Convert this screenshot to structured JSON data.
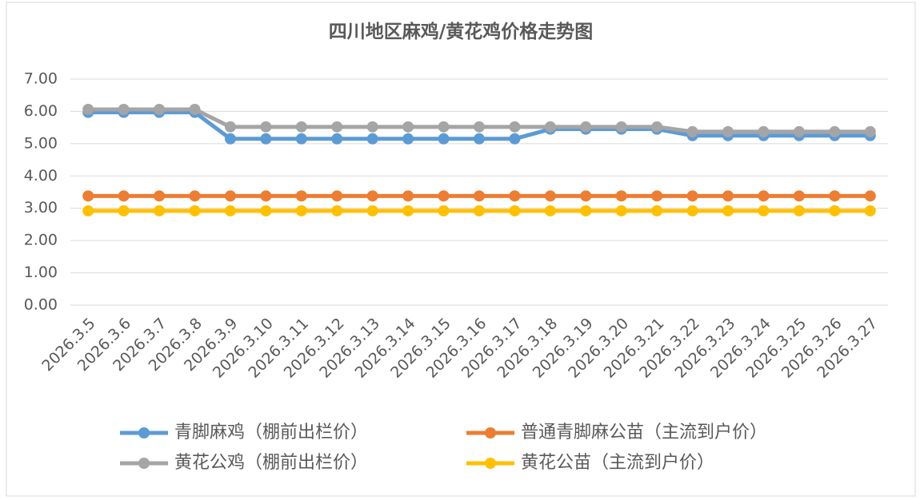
{
  "chart_data": {
    "type": "line",
    "title": "四川地区麻鸡/黄花鸡价格走势图",
    "categories": [
      "2026.3.5",
      "2026.3.6",
      "2026.3.7",
      "2026.3.8",
      "2026.3.9",
      "2026.3.10",
      "2026.3.11",
      "2026.3.12",
      "2026.3.13",
      "2026.3.14",
      "2026.3.15",
      "2026.3.16",
      "2026.3.17",
      "2026.3.18",
      "2026.3.19",
      "2026.3.20",
      "2026.3.21",
      "2026.3.22",
      "2026.3.23",
      "2026.3.24",
      "2026.3.25",
      "2026.3.26",
      "2026.3.27"
    ],
    "series": [
      {
        "name": "青脚麻鸡（棚前出栏价）",
        "color": "#5b9bd5",
        "values": [
          5.97,
          5.97,
          5.97,
          5.97,
          5.15,
          5.15,
          5.15,
          5.15,
          5.15,
          5.15,
          5.15,
          5.15,
          5.15,
          5.45,
          5.45,
          5.45,
          5.45,
          5.25,
          5.25,
          5.25,
          5.25,
          5.25,
          5.25
        ]
      },
      {
        "name": "普通青脚麻公苗（主流到户价）",
        "color": "#ed7d31",
        "values": [
          3.38,
          3.38,
          3.38,
          3.38,
          3.38,
          3.38,
          3.38,
          3.38,
          3.38,
          3.38,
          3.38,
          3.38,
          3.38,
          3.38,
          3.38,
          3.38,
          3.38,
          3.38,
          3.38,
          3.38,
          3.38,
          3.38,
          3.38
        ]
      },
      {
        "name": "黄花公鸡（棚前出栏价）",
        "color": "#a5a5a5",
        "values": [
          6.06,
          6.06,
          6.06,
          6.06,
          5.52,
          5.52,
          5.52,
          5.52,
          5.52,
          5.52,
          5.52,
          5.52,
          5.52,
          5.52,
          5.52,
          5.52,
          5.52,
          5.37,
          5.37,
          5.37,
          5.37,
          5.37,
          5.37
        ]
      },
      {
        "name": "黄花公苗（主流到户价）",
        "color": "#ffc000",
        "values": [
          2.92,
          2.92,
          2.92,
          2.92,
          2.92,
          2.92,
          2.92,
          2.92,
          2.92,
          2.92,
          2.92,
          2.92,
          2.92,
          2.92,
          2.92,
          2.92,
          2.92,
          2.92,
          2.92,
          2.92,
          2.92,
          2.92,
          2.92
        ]
      }
    ],
    "ylim": [
      0,
      7
    ],
    "yticks": [
      {
        "value": 0,
        "label": "0.00"
      },
      {
        "value": 1,
        "label": "1.00"
      },
      {
        "value": 2,
        "label": "2.00"
      },
      {
        "value": 3,
        "label": "3.00"
      },
      {
        "value": 4,
        "label": "4.00"
      },
      {
        "value": 5,
        "label": "5.00"
      },
      {
        "value": 6,
        "label": "6.00"
      },
      {
        "value": 7,
        "label": "7.00"
      }
    ],
    "grid": true,
    "legend_position": "bottom",
    "title_color": "#e00000"
  }
}
